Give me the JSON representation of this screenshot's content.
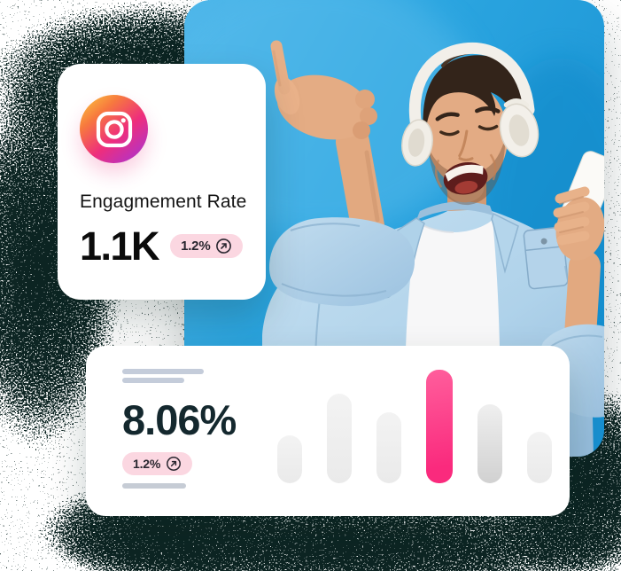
{
  "colors": {
    "accent_pink": "#FA2A7D",
    "badge_bg": "#FBD7E1",
    "badge_text": "#2A2730",
    "skeleton": "#C4CCDA",
    "stat_dark": "#14282E",
    "photo_blue": "#2AA4DF"
  },
  "engagement_card": {
    "platform_icon": "instagram-icon",
    "title": "Engagmement Rate",
    "value": "1.1K",
    "badge": {
      "label": "1.2%",
      "icon": "arrow-up-right-icon"
    }
  },
  "rate_card": {
    "value": "8.06%",
    "badge": {
      "label": "1.2%",
      "icon": "arrow-up-right-icon"
    }
  },
  "photo": {
    "subject": "smiling man with closed eyes wearing white headphones, pointing up with one hand and holding a white phone in the other, light denim shirt over white t-shirt, bright blue background"
  },
  "chart_data": {
    "type": "bar",
    "values": [
      54,
      101,
      80,
      128,
      89,
      58
    ],
    "unit": "px-height",
    "highlight_index": 3,
    "shades": [
      "light",
      "light",
      "light",
      "accent",
      "dark",
      "light"
    ],
    "title": "",
    "xlabel": "",
    "ylabel": "",
    "grid": false,
    "legend": false
  }
}
